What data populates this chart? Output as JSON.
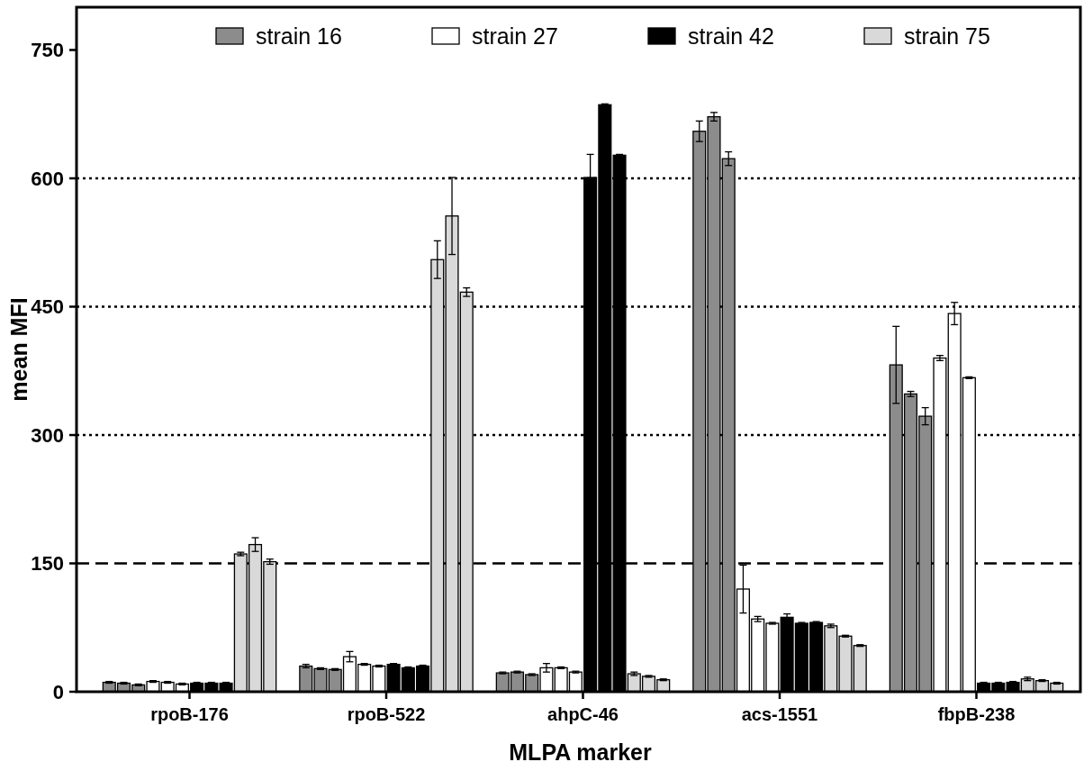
{
  "chart_data": {
    "type": "bar",
    "xlabel": "MLPA marker",
    "ylabel": "mean MFI",
    "categories": [
      "rpoB-176",
      "rpoB-522",
      "ahpC-46",
      "acs-1551",
      "fbpB-238"
    ],
    "ylim": [
      0,
      800
    ],
    "yticks": [
      0,
      150,
      300,
      450,
      600,
      750
    ],
    "grid": false,
    "legend": "top",
    "ref_lines": [
      {
        "axis": "y",
        "value": 150,
        "line_style": "dashed",
        "color": "#000000"
      },
      {
        "axis": "y",
        "value": 300,
        "line_style": "dotted",
        "color": "#000000"
      },
      {
        "axis": "y",
        "value": 450,
        "line_style": "dotted",
        "color": "#000000"
      },
      {
        "axis": "y",
        "value": 600,
        "line_style": "dotted",
        "color": "#000000"
      }
    ],
    "series": [
      {
        "name": "strain 16",
        "color": "#8c8c8c",
        "values": [
          11,
          30,
          22,
          655,
          382
        ],
        "errors": [
          1,
          2,
          1,
          12,
          45
        ]
      },
      {
        "color": "#8c8c8c",
        "values": [
          10,
          27,
          23,
          672,
          348
        ],
        "errors": [
          1,
          1,
          1,
          5,
          3
        ]
      },
      {
        "color": "#8c8c8c",
        "values": [
          8,
          26,
          20,
          623,
          322
        ],
        "errors": [
          1,
          1,
          1,
          8,
          10
        ]
      },
      {
        "name": "strain 27",
        "color": "#ffffff",
        "values": [
          12,
          41,
          28,
          120,
          390
        ],
        "errors": [
          1,
          6,
          5,
          28,
          3
        ]
      },
      {
        "color": "#ffffff",
        "values": [
          11,
          32,
          28,
          85,
          442
        ],
        "errors": [
          1,
          1,
          1,
          3,
          13
        ]
      },
      {
        "color": "#ffffff",
        "values": [
          9,
          30,
          23,
          80,
          367
        ],
        "errors": [
          1,
          1,
          1,
          1,
          1
        ]
      },
      {
        "name": "strain 42",
        "color": "#000000",
        "values": [
          10,
          32,
          601,
          87,
          10
        ],
        "errors": [
          1,
          1,
          27,
          4,
          1
        ]
      },
      {
        "color": "#000000",
        "values": [
          10,
          28,
          686,
          80,
          10
        ],
        "errors": [
          1,
          1,
          1,
          1,
          1
        ]
      },
      {
        "color": "#000000",
        "values": [
          10,
          30,
          627,
          81,
          11
        ],
        "errors": [
          1,
          1,
          1,
          1,
          1
        ]
      },
      {
        "name": "strain 75",
        "color": "#d9d9d9",
        "values": [
          161,
          505,
          21,
          77,
          15
        ],
        "errors": [
          2,
          22,
          2,
          2,
          2
        ]
      },
      {
        "color": "#d9d9d9",
        "values": [
          172,
          556,
          18,
          65,
          13
        ],
        "errors": [
          8,
          45,
          1,
          1,
          1
        ]
      },
      {
        "color": "#d9d9d9",
        "values": [
          152,
          467,
          14,
          54,
          10
        ],
        "errors": [
          3,
          5,
          1,
          1,
          1
        ]
      }
    ]
  }
}
